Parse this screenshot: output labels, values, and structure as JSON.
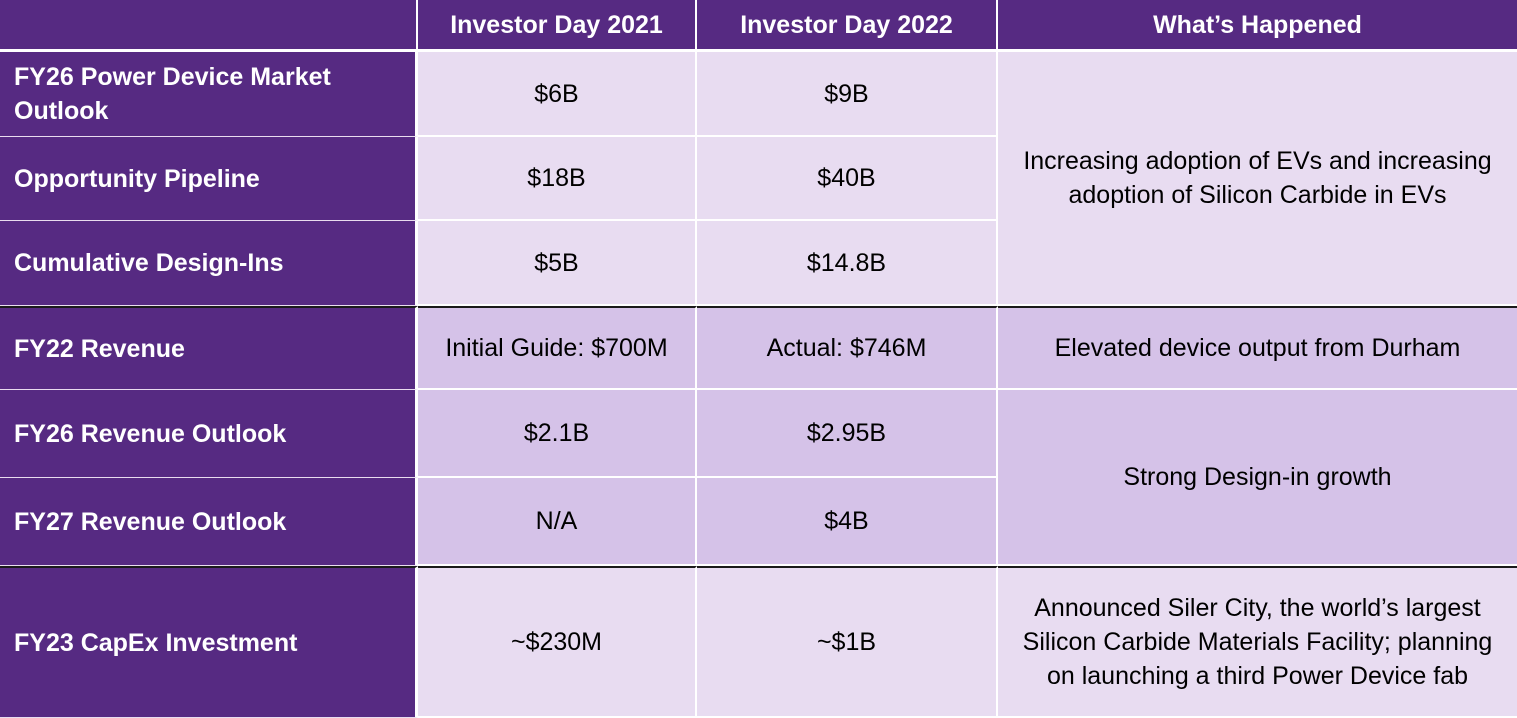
{
  "headers": {
    "blank": "",
    "col1": "Investor Day 2021",
    "col2": "Investor Day 2022",
    "col3": "What’s Happened"
  },
  "rows": [
    {
      "label": "FY26 Power Device Market Outlook",
      "v2021": "$6B",
      "v2022": "$9B"
    },
    {
      "label": "Opportunity Pipeline",
      "v2021": "$18B",
      "v2022": "$40B"
    },
    {
      "label": "Cumulative Design-Ins",
      "v2021": "$5B",
      "v2022": "$14.8B"
    },
    {
      "label": "FY22 Revenue",
      "v2021": "Initial Guide: $700M",
      "v2022": "Actual: $746M"
    },
    {
      "label": "FY26 Revenue Outlook",
      "v2021": "$2.1B",
      "v2022": "$2.95B"
    },
    {
      "label": "FY27 Revenue Outlook",
      "v2021": "N/A",
      "v2022": "$4B"
    },
    {
      "label": "FY23 CapEx Investment",
      "v2021": "~$230M",
      "v2022": "~$1B"
    }
  ],
  "happened": {
    "group1": "Increasing adoption of EVs and increasing adoption of Silicon Carbide in EVs",
    "group2": "Elevated device output from Durham",
    "group3": "Strong Design-in growth",
    "group4": "Announced Siler City, the world’s largest Silicon Carbide Materials Facility; planning on launching a third Power Device fab"
  },
  "colors": {
    "header_bg": "#562a82",
    "row_light": "#e8dcf1",
    "row_mid": "#d5c2e8"
  }
}
